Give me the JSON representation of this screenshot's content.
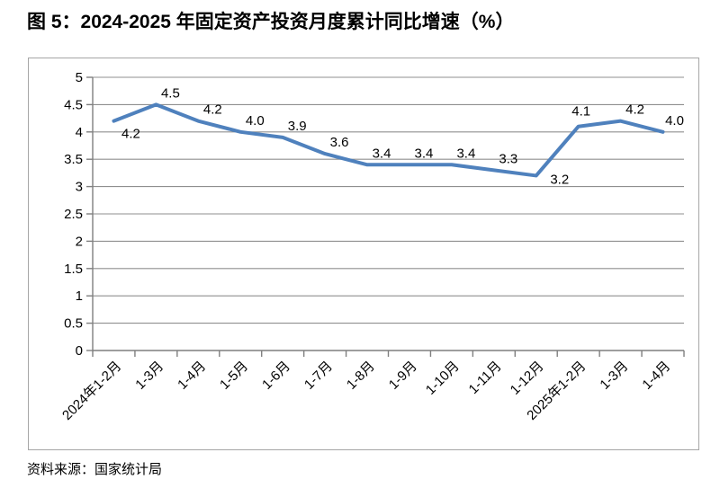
{
  "figure": {
    "title": "图 5：2024-2025 年固定资产投资月度累计同比增速（%）",
    "source": "资料来源：国家统计局"
  },
  "chart_data": {
    "type": "line",
    "title": "图 5：2024-2025 年固定资产投资月度累计同比增速（%）",
    "categories": [
      "2024年1-2月",
      "1-3月",
      "1-4月",
      "1-5月",
      "1-6月",
      "1-7月",
      "1-8月",
      "1-9月",
      "1-10月",
      "1-11月",
      "1-12月",
      "2025年1-2月",
      "1-3月",
      "1-4月"
    ],
    "values": [
      4.2,
      4.5,
      4.2,
      4.0,
      3.9,
      3.6,
      3.4,
      3.4,
      3.4,
      3.3,
      3.2,
      4.1,
      4.2,
      4.0
    ],
    "point_labels": [
      "4.2",
      "4.5",
      "4.2",
      "4.0",
      "3.9",
      "3.6",
      "3.4",
      "3.4",
      "3.4",
      "3.3",
      "3.2",
      "4.1",
      "4.2",
      "4.0"
    ],
    "xlabel": "",
    "ylabel": "",
    "ylim": [
      0,
      5
    ],
    "ytick_step": 0.5,
    "ytick_labels": [
      "0",
      "0.5",
      "1",
      "1.5",
      "2",
      "2.5",
      "3",
      "3.5",
      "4",
      "4.5",
      "5"
    ],
    "grid": true,
    "legend": false,
    "x_label_rotation": -45,
    "colors": {
      "line": "#4F81BD",
      "grid": "#8f8f8f",
      "axis": "#7f7f7f",
      "frame_border": "#a6a6a6",
      "text": "#000000"
    }
  }
}
